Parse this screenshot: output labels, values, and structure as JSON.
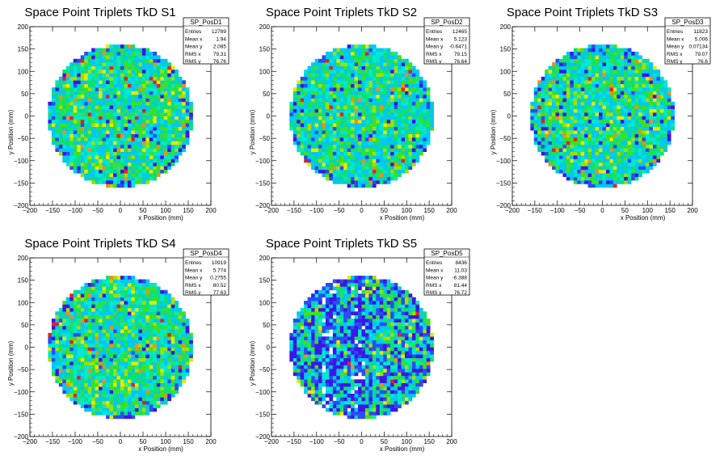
{
  "chart_data": [
    {
      "type": "heatmap",
      "title": "Space Point Triplets TkD S1",
      "xlabel": "x Position (mm)",
      "ylabel": "y Position (mm)",
      "xlim": [
        -200,
        200
      ],
      "ylim": [
        -200,
        200
      ],
      "xticks": [
        "−200",
        "−150",
        "−100",
        "−50",
        "0",
        "50",
        "100",
        "150",
        "200"
      ],
      "yticks": [
        "−200",
        "−150",
        "−100",
        "−50",
        "0",
        "50",
        "100",
        "150",
        "200"
      ],
      "radius": 160,
      "stats": {
        "name": "SP_PosD1",
        "rows": [
          [
            "Entries",
            "12789"
          ],
          [
            "Mean x",
            "1.94"
          ],
          [
            "Mean y",
            "2.085"
          ],
          [
            "RMS x",
            "79.31"
          ],
          [
            "RMS y",
            "76.76"
          ]
        ]
      },
      "seed": 11,
      "blue_fraction": 0.05,
      "band": false
    },
    {
      "type": "heatmap",
      "title": "Space Point Triplets TkD S2",
      "xlabel": "x Position (mm)",
      "ylabel": "y Position (mm)",
      "xlim": [
        -200,
        200
      ],
      "ylim": [
        -200,
        200
      ],
      "xticks": [
        "−200",
        "−150",
        "−100",
        "−50",
        "0",
        "50",
        "100",
        "150",
        "200"
      ],
      "yticks": [
        "−200",
        "−150",
        "−100",
        "−50",
        "0",
        "50",
        "100",
        "150",
        "200"
      ],
      "radius": 160,
      "stats": {
        "name": "SP_PosD2",
        "rows": [
          [
            "Entries",
            "12465"
          ],
          [
            "Mean x",
            "5.123"
          ],
          [
            "Mean y",
            "-0.6471"
          ],
          [
            "RMS x",
            "79.15"
          ],
          [
            "RMS y",
            "76.64"
          ]
        ]
      },
      "seed": 23,
      "blue_fraction": 0.05,
      "band": false
    },
    {
      "type": "heatmap",
      "title": "Space Point Triplets TkD S3",
      "xlabel": "x Position (mm)",
      "ylabel": "y Position (mm)",
      "xlim": [
        -200,
        200
      ],
      "ylim": [
        -200,
        200
      ],
      "xticks": [
        "−200",
        "−150",
        "−100",
        "−50",
        "0",
        "50",
        "100",
        "150",
        "200"
      ],
      "yticks": [
        "−200",
        "−150",
        "−100",
        "−50",
        "0",
        "50",
        "100",
        "150",
        "200"
      ],
      "radius": 160,
      "stats": {
        "name": "SP_PosD3",
        "rows": [
          [
            "Entries",
            "11823"
          ],
          [
            "Mean x",
            "5.006"
          ],
          [
            "Mean y",
            "0.07134"
          ],
          [
            "RMS x",
            "79.07"
          ],
          [
            "RMS y",
            "76.6"
          ]
        ]
      },
      "seed": 37,
      "blue_fraction": 0.06,
      "band": false
    },
    {
      "type": "heatmap",
      "title": "Space Point Triplets TkD S4",
      "xlabel": "x Position (mm)",
      "ylabel": "y Position (mm)",
      "xlim": [
        -200,
        200
      ],
      "ylim": [
        -200,
        200
      ],
      "xticks": [
        "−200",
        "−150",
        "−100",
        "−50",
        "0",
        "50",
        "100",
        "150",
        "200"
      ],
      "yticks": [
        "−200",
        "−150",
        "−100",
        "−50",
        "0",
        "50",
        "100",
        "150",
        "200"
      ],
      "radius": 160,
      "stats": {
        "name": "SP_PosD4",
        "rows": [
          [
            "Entries",
            "10919"
          ],
          [
            "Mean x",
            "5.774"
          ],
          [
            "Mean y",
            "0.2755"
          ],
          [
            "RMS x",
            "80.52"
          ],
          [
            "RMS y",
            "77.63"
          ]
        ]
      },
      "seed": 51,
      "blue_fraction": 0.06,
      "band": false
    },
    {
      "type": "heatmap",
      "title": "Space Point Triplets TkD S5",
      "xlabel": "x Position (mm)",
      "ylabel": "y Position (mm)",
      "xlim": [
        -200,
        200
      ],
      "ylim": [
        -200,
        200
      ],
      "xticks": [
        "−200",
        "−150",
        "−100",
        "−50",
        "0",
        "50",
        "100",
        "150",
        "200"
      ],
      "yticks": [
        "−200",
        "−150",
        "−100",
        "−50",
        "0",
        "50",
        "100",
        "150",
        "200"
      ],
      "radius": 160,
      "stats": {
        "name": "SP_PosD5",
        "rows": [
          [
            "Entries",
            "8436"
          ],
          [
            "Mean x",
            "11.03"
          ],
          [
            "Mean y",
            "-6.388"
          ],
          [
            "RMS x",
            "81.44"
          ],
          [
            "RMS y",
            "76.72"
          ]
        ]
      },
      "seed": 67,
      "blue_fraction": 0.35,
      "band": true
    }
  ],
  "palette": [
    "#3b16e6",
    "#2b4cf0",
    "#00c8f0",
    "#00e8d0",
    "#10e070",
    "#40e020",
    "#a0e000",
    "#e8e800",
    "#f09010",
    "#e82020"
  ]
}
